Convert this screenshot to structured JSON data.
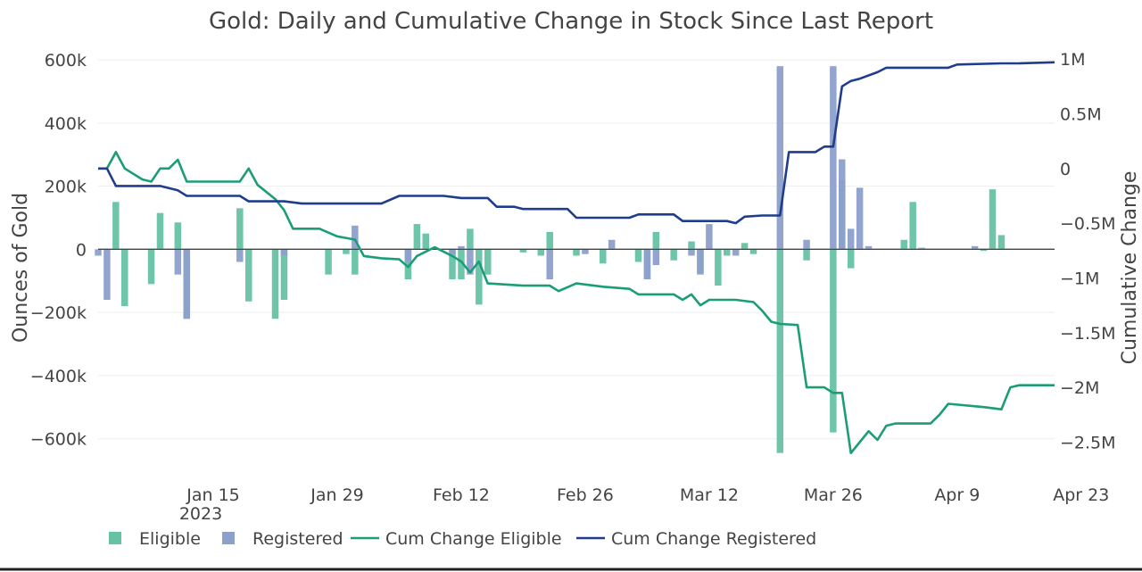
{
  "chart_data": {
    "type": "bar+line",
    "title": "Gold: Daily and Cumulative Change in Stock Since Last Report",
    "ylabel": "Ounces of Gold",
    "y2label": "Cumulative Change",
    "ylim": [
      -680000,
      620000
    ],
    "y2lim": [
      -2.7,
      1.05
    ],
    "xlim": [
      0,
      108
    ],
    "x_ticks": [
      {
        "x": 13,
        "label": "Jan 15"
      },
      {
        "x": 27,
        "label": "Jan 29"
      },
      {
        "x": 41,
        "label": "Feb 12"
      },
      {
        "x": 55,
        "label": "Feb 26"
      },
      {
        "x": 69,
        "label": "Mar 12"
      },
      {
        "x": 83,
        "label": "Mar 26"
      },
      {
        "x": 97,
        "label": "Apr 9"
      },
      {
        "x": 111,
        "label": "Apr 23"
      }
    ],
    "x_year_label": "2023",
    "y_ticks": [
      {
        "v": 600000,
        "label": "600k"
      },
      {
        "v": 400000,
        "label": "400k"
      },
      {
        "v": 200000,
        "label": "200k"
      },
      {
        "v": 0,
        "label": "0"
      },
      {
        "v": -200000,
        "label": "−200k"
      },
      {
        "v": -400000,
        "label": "−400k"
      },
      {
        "v": -600000,
        "label": "−600k"
      }
    ],
    "y2_ticks": [
      {
        "v": 1,
        "label": "1M"
      },
      {
        "v": 0.5,
        "label": "0.5M"
      },
      {
        "v": 0,
        "label": "0"
      },
      {
        "v": -0.5,
        "label": "−0.5M"
      },
      {
        "v": -1,
        "label": "−1M"
      },
      {
        "v": -1.5,
        "label": "−1.5M"
      },
      {
        "v": -2,
        "label": "−2M"
      },
      {
        "v": -2.5,
        "label": "−2.5M"
      }
    ],
    "series": [
      {
        "name": "Eligible",
        "kind": "bar",
        "color": "#66c2a5",
        "points": [
          [
            2,
            150000
          ],
          [
            3,
            -180000
          ],
          [
            6,
            -110000
          ],
          [
            7,
            115000
          ],
          [
            9,
            85000
          ],
          [
            10,
            -220000
          ],
          [
            16,
            130000
          ],
          [
            17,
            -165000
          ],
          [
            20,
            -220000
          ],
          [
            21,
            -160000
          ],
          [
            26,
            -80000
          ],
          [
            28,
            -15000
          ],
          [
            29,
            -80000
          ],
          [
            35,
            -95000
          ],
          [
            36,
            80000
          ],
          [
            37,
            50000
          ],
          [
            40,
            -95000
          ],
          [
            41,
            -95000
          ],
          [
            42,
            65000
          ],
          [
            43,
            -175000
          ],
          [
            44,
            -80000
          ],
          [
            48,
            -10000
          ],
          [
            50,
            -20000
          ],
          [
            51,
            55000
          ],
          [
            54,
            -20000
          ],
          [
            57,
            -45000
          ],
          [
            61,
            -40000
          ],
          [
            62,
            -95000
          ],
          [
            63,
            55000
          ],
          [
            65,
            -35000
          ],
          [
            67,
            25000
          ],
          [
            68,
            -75000
          ],
          [
            70,
            -115000
          ],
          [
            71,
            -20000
          ],
          [
            73,
            20000
          ],
          [
            74,
            -15000
          ],
          [
            77,
            -645000
          ],
          [
            80,
            -35000
          ],
          [
            83,
            -580000
          ],
          [
            84,
            220000
          ],
          [
            85,
            -60000
          ],
          [
            91,
            30000
          ],
          [
            92,
            150000
          ],
          [
            100,
            -5000
          ],
          [
            101,
            190000
          ],
          [
            102,
            45000
          ]
        ]
      },
      {
        "name": "Registered",
        "kind": "bar",
        "color": "#8da0cb",
        "points": [
          [
            0,
            -20000
          ],
          [
            1,
            -160000
          ],
          [
            9,
            -80000
          ],
          [
            10,
            -220000
          ],
          [
            16,
            -40000
          ],
          [
            21,
            -20000
          ],
          [
            29,
            75000
          ],
          [
            35,
            -40000
          ],
          [
            40,
            -15000
          ],
          [
            41,
            10000
          ],
          [
            42,
            -80000
          ],
          [
            51,
            -95000
          ],
          [
            55,
            -15000
          ],
          [
            58,
            30000
          ],
          [
            62,
            -95000
          ],
          [
            63,
            -50000
          ],
          [
            67,
            -20000
          ],
          [
            68,
            -80000
          ],
          [
            69,
            80000
          ],
          [
            72,
            -20000
          ],
          [
            77,
            580000
          ],
          [
            80,
            30000
          ],
          [
            83,
            580000
          ],
          [
            84,
            285000
          ],
          [
            85,
            65000
          ],
          [
            86,
            195000
          ],
          [
            87,
            10000
          ],
          [
            93,
            5000
          ],
          [
            99,
            10000
          ]
        ]
      },
      {
        "name": "Cum Change Eligible",
        "kind": "line",
        "axis": "y2",
        "color": "#1b9e77",
        "points": [
          [
            0,
            0.0
          ],
          [
            1,
            0.0
          ],
          [
            2,
            0.15
          ],
          [
            3,
            0.0
          ],
          [
            5,
            -0.1
          ],
          [
            6,
            -0.12
          ],
          [
            7,
            0.0
          ],
          [
            8,
            0.0
          ],
          [
            9,
            0.08
          ],
          [
            10,
            -0.12
          ],
          [
            16,
            -0.12
          ],
          [
            17,
            0.0
          ],
          [
            18,
            -0.15
          ],
          [
            20,
            -0.28
          ],
          [
            21,
            -0.38
          ],
          [
            22,
            -0.55
          ],
          [
            25,
            -0.55
          ],
          [
            27,
            -0.62
          ],
          [
            29,
            -0.65
          ],
          [
            30,
            -0.8
          ],
          [
            32,
            -0.82
          ],
          [
            34,
            -0.83
          ],
          [
            35,
            -0.9
          ],
          [
            36,
            -0.8
          ],
          [
            38,
            -0.72
          ],
          [
            40,
            -0.8
          ],
          [
            41,
            -0.85
          ],
          [
            42,
            -0.95
          ],
          [
            43,
            -0.85
          ],
          [
            44,
            -1.05
          ],
          [
            48,
            -1.07
          ],
          [
            51,
            -1.07
          ],
          [
            52,
            -1.12
          ],
          [
            54,
            -1.05
          ],
          [
            57,
            -1.08
          ],
          [
            60,
            -1.1
          ],
          [
            61,
            -1.15
          ],
          [
            65,
            -1.15
          ],
          [
            66,
            -1.2
          ],
          [
            67,
            -1.15
          ],
          [
            68,
            -1.25
          ],
          [
            69,
            -1.2
          ],
          [
            70,
            -1.2
          ],
          [
            72,
            -1.2
          ],
          [
            74,
            -1.22
          ],
          [
            75,
            -1.3
          ],
          [
            76,
            -1.4
          ],
          [
            77,
            -1.42
          ],
          [
            79,
            -1.43
          ],
          [
            80,
            -2.0
          ],
          [
            82,
            -2.0
          ],
          [
            83,
            -2.05
          ],
          [
            84,
            -2.05
          ],
          [
            85,
            -2.6
          ],
          [
            86,
            -2.5
          ],
          [
            87,
            -2.4
          ],
          [
            88,
            -2.48
          ],
          [
            89,
            -2.35
          ],
          [
            90,
            -2.33
          ],
          [
            94,
            -2.33
          ],
          [
            95,
            -2.25
          ],
          [
            96,
            -2.15
          ],
          [
            100,
            -2.18
          ],
          [
            102,
            -2.2
          ],
          [
            103,
            -2.0
          ],
          [
            104,
            -1.98
          ],
          [
            108,
            -1.98
          ]
        ]
      },
      {
        "name": "Cum Change Registered",
        "kind": "line",
        "axis": "y2",
        "color": "#1f3d8c",
        "points": [
          [
            0,
            0.0
          ],
          [
            1,
            0.0
          ],
          [
            2,
            -0.16
          ],
          [
            7,
            -0.16
          ],
          [
            9,
            -0.2
          ],
          [
            10,
            -0.25
          ],
          [
            16,
            -0.25
          ],
          [
            17,
            -0.3
          ],
          [
            21,
            -0.3
          ],
          [
            23,
            -0.32
          ],
          [
            32,
            -0.32
          ],
          [
            34,
            -0.25
          ],
          [
            39,
            -0.25
          ],
          [
            41,
            -0.27
          ],
          [
            44,
            -0.27
          ],
          [
            45,
            -0.35
          ],
          [
            47,
            -0.35
          ],
          [
            48,
            -0.37
          ],
          [
            53,
            -0.37
          ],
          [
            54,
            -0.45
          ],
          [
            60,
            -0.45
          ],
          [
            61,
            -0.42
          ],
          [
            65,
            -0.42
          ],
          [
            66,
            -0.48
          ],
          [
            71,
            -0.48
          ],
          [
            72,
            -0.5
          ],
          [
            73,
            -0.44
          ],
          [
            75,
            -0.43
          ],
          [
            76,
            -0.43
          ],
          [
            77,
            -0.43
          ],
          [
            78,
            0.15
          ],
          [
            80,
            0.15
          ],
          [
            81,
            0.15
          ],
          [
            82,
            0.2
          ],
          [
            83,
            0.2
          ],
          [
            84,
            0.75
          ],
          [
            85,
            0.8
          ],
          [
            86,
            0.82
          ],
          [
            88,
            0.88
          ],
          [
            89,
            0.92
          ],
          [
            92,
            0.92
          ],
          [
            96,
            0.92
          ],
          [
            97,
            0.95
          ],
          [
            102,
            0.96
          ],
          [
            104,
            0.96
          ],
          [
            108,
            0.97
          ]
        ]
      }
    ],
    "legend": {
      "placement": "bottom-left",
      "items": [
        "Eligible",
        "Registered",
        "Cum Change Eligible",
        "Cum Change Registered"
      ]
    }
  }
}
